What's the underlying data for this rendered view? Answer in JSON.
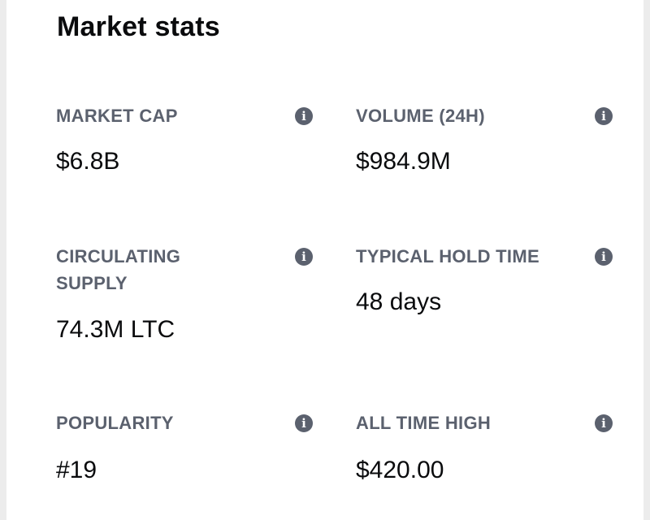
{
  "header": {
    "title": "Market stats"
  },
  "stats": [
    {
      "label": "MARKET CAP",
      "value": "$6.8B",
      "info_icon": "info-icon"
    },
    {
      "label": "VOLUME (24H)",
      "value": "$984.9M",
      "info_icon": "info-icon"
    },
    {
      "label": "CIRCULATING SUPPLY",
      "value": "74.3M LTC",
      "info_icon": "info-icon"
    },
    {
      "label": "TYPICAL HOLD TIME",
      "value": "48 days",
      "info_icon": "info-icon"
    },
    {
      "label": "POPULARITY",
      "value": "#19",
      "info_icon": "info-icon"
    },
    {
      "label": "ALL TIME HIGH",
      "value": "$420.00",
      "info_icon": "info-icon"
    }
  ],
  "colors": {
    "label": "#5b616e",
    "value": "#0a0b0d",
    "icon": "#5b616e",
    "background": "#ffffff"
  }
}
